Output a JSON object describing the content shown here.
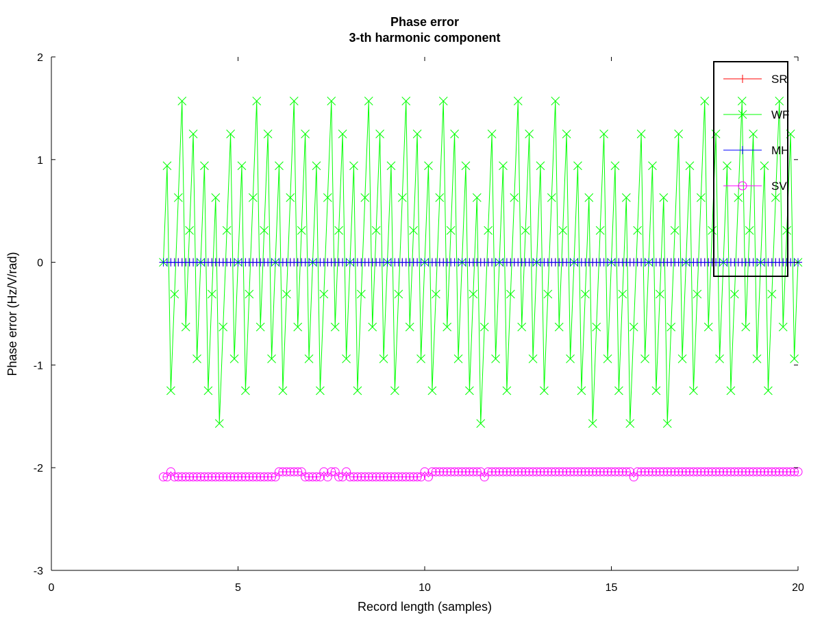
{
  "chart_data": {
    "type": "line",
    "title": "Phase error",
    "subtitle": "3-th harmonic component",
    "xlabel": "Record length (samples)",
    "ylabel": "Phase error (Hz/V/rad)",
    "xlim": [
      0,
      20
    ],
    "ylim": [
      -3,
      2
    ],
    "xticks": [
      0,
      5,
      10,
      15,
      20
    ],
    "yticks": [
      -3,
      -2,
      -1,
      0,
      1,
      2
    ],
    "grid": false,
    "legend_position": "top-right",
    "x": [
      3,
      3.1,
      3.2,
      3.3,
      3.4,
      3.5,
      3.6,
      3.7,
      3.8,
      3.9,
      4,
      4.1,
      4.2,
      4.3,
      4.4,
      4.5,
      4.6,
      4.7,
      4.8,
      4.9,
      5,
      5.1,
      5.2,
      5.3,
      5.4,
      5.5,
      5.6,
      5.7,
      5.8,
      5.9,
      6,
      6.1,
      6.2,
      6.3,
      6.4,
      6.5,
      6.6,
      6.7,
      6.8,
      6.9,
      7,
      7.1,
      7.2,
      7.3,
      7.4,
      7.5,
      7.6,
      7.7,
      7.8,
      7.9,
      8,
      8.1,
      8.2,
      8.3,
      8.4,
      8.5,
      8.6,
      8.7,
      8.8,
      8.9,
      9,
      9.1,
      9.2,
      9.3,
      9.4,
      9.5,
      9.6,
      9.7,
      9.8,
      9.9,
      10,
      10.1,
      10.2,
      10.3,
      10.4,
      10.5,
      10.6,
      10.7,
      10.8,
      10.9,
      11,
      11.1,
      11.2,
      11.3,
      11.4,
      11.5,
      11.6,
      11.7,
      11.8,
      11.9,
      12,
      12.1,
      12.2,
      12.3,
      12.4,
      12.5,
      12.6,
      12.7,
      12.8,
      12.9,
      13,
      13.1,
      13.2,
      13.3,
      13.4,
      13.5,
      13.6,
      13.7,
      13.8,
      13.9,
      14,
      14.1,
      14.2,
      14.3,
      14.4,
      14.5,
      14.6,
      14.7,
      14.8,
      14.9,
      15,
      15.1,
      15.2,
      15.3,
      15.4,
      15.5,
      15.6,
      15.7,
      15.8,
      15.9,
      16,
      16.1,
      16.2,
      16.3,
      16.4,
      16.5,
      16.6,
      16.7,
      16.8,
      16.9,
      17,
      17.1,
      17.2,
      17.3,
      17.4,
      17.5,
      17.6,
      17.7,
      17.8,
      17.9,
      18,
      18.1,
      18.2,
      18.3,
      18.4,
      18.5,
      18.6,
      18.7,
      18.8,
      18.9,
      19,
      19.1,
      19.2,
      19.3,
      19.4,
      19.5,
      19.6,
      19.7,
      19.8,
      19.9,
      20
    ],
    "series": [
      {
        "name": "SR",
        "color": "#ff0000",
        "marker": "plus",
        "values": [
          0,
          0,
          0,
          0,
          0,
          0,
          0,
          0,
          0,
          0,
          0,
          0,
          0,
          0,
          0,
          0,
          0,
          0,
          0,
          0,
          0,
          0,
          0,
          0,
          0,
          0,
          0,
          0,
          0,
          0,
          0,
          0,
          0,
          0,
          0,
          0,
          0,
          0,
          0,
          0,
          0,
          0,
          0,
          0,
          0,
          0,
          0,
          0,
          0,
          0,
          0,
          0,
          0,
          0,
          0,
          0,
          0,
          0,
          0,
          0,
          0,
          0,
          0,
          0,
          0,
          0,
          0,
          0,
          0,
          0,
          0,
          0,
          0,
          0,
          0,
          0,
          0,
          0,
          0,
          0,
          0,
          0,
          0,
          0,
          0,
          0,
          0,
          0,
          0,
          0,
          0,
          0,
          0,
          0,
          0,
          0,
          0,
          0,
          0,
          0,
          0,
          0,
          0,
          0,
          0,
          0,
          0,
          0,
          0,
          0,
          0,
          0,
          0,
          0,
          0,
          0,
          0,
          0,
          0,
          0,
          0,
          0,
          0,
          0,
          0,
          0,
          0,
          0,
          0,
          0,
          0,
          0,
          0,
          0,
          0,
          0,
          0,
          0,
          0,
          0,
          0,
          0,
          0,
          0,
          0,
          0,
          0,
          0,
          0,
          0,
          0,
          0,
          0,
          0,
          0,
          0,
          0,
          0,
          0,
          0,
          0,
          0,
          0,
          0,
          0,
          0,
          0,
          0,
          0,
          0,
          0
        ]
      },
      {
        "name": "WF",
        "color": "#00ff00",
        "marker": "x",
        "values": [
          0,
          0.94,
          -1.25,
          -0.31,
          0.63,
          1.57,
          -0.63,
          0.31,
          1.25,
          -0.94,
          0,
          0.94,
          -1.25,
          -0.31,
          0.63,
          -1.57,
          -0.63,
          0.31,
          1.25,
          -0.94,
          0,
          0.94,
          -1.25,
          -0.31,
          0.63,
          1.57,
          -0.63,
          0.31,
          1.25,
          -0.94,
          0,
          0.94,
          -1.25,
          -0.31,
          0.63,
          1.57,
          -0.63,
          0.31,
          1.25,
          -0.94,
          0,
          0.94,
          -1.25,
          -0.31,
          0.63,
          1.57,
          -0.63,
          0.31,
          1.25,
          -0.94,
          0,
          0.94,
          -1.25,
          -0.31,
          0.63,
          1.57,
          -0.63,
          0.31,
          1.25,
          -0.94,
          0,
          0.94,
          -1.25,
          -0.31,
          0.63,
          1.57,
          -0.63,
          0.31,
          1.25,
          -0.94,
          0,
          0.94,
          -1.25,
          -0.31,
          0.63,
          1.57,
          -0.63,
          0.31,
          1.25,
          -0.94,
          0,
          0.94,
          -1.25,
          -0.31,
          0.63,
          -1.57,
          -0.63,
          0.31,
          1.25,
          -0.94,
          0,
          0.94,
          -1.25,
          -0.31,
          0.63,
          1.57,
          -0.63,
          0.31,
          1.25,
          -0.94,
          0,
          0.94,
          -1.25,
          -0.31,
          0.63,
          1.57,
          -0.63,
          0.31,
          1.25,
          -0.94,
          0,
          0.94,
          -1.25,
          -0.31,
          0.63,
          -1.57,
          -0.63,
          0.31,
          1.25,
          -0.94,
          0,
          0.94,
          -1.25,
          -0.31,
          0.63,
          -1.57,
          -0.63,
          0.31,
          1.25,
          -0.94,
          0,
          0.94,
          -1.25,
          -0.31,
          0.63,
          -1.57,
          -0.63,
          0.31,
          1.25,
          -0.94,
          0,
          0.94,
          -1.25,
          -0.31,
          0.63,
          1.57,
          -0.63,
          0.31,
          1.25,
          -0.94,
          0,
          0.94,
          -1.25,
          -0.31,
          0.63,
          1.57,
          -0.63,
          0.31,
          1.25,
          -0.94,
          0,
          0.94,
          -1.25,
          -0.31,
          0.63,
          1.57,
          -0.63,
          0.31,
          1.25,
          -0.94,
          0
        ]
      },
      {
        "name": "MH",
        "color": "#0000ff",
        "marker": "plus",
        "values": [
          0,
          0,
          0,
          0,
          0,
          0,
          0,
          0,
          0,
          0,
          0,
          0,
          0,
          0,
          0,
          0,
          0,
          0,
          0,
          0,
          0,
          0,
          0,
          0,
          0,
          0,
          0,
          0,
          0,
          0,
          0,
          0,
          0,
          0,
          0,
          0,
          0,
          0,
          0,
          0,
          0,
          0,
          0,
          0,
          0,
          0,
          0,
          0,
          0,
          0,
          0,
          0,
          0,
          0,
          0,
          0,
          0,
          0,
          0,
          0,
          0,
          0,
          0,
          0,
          0,
          0,
          0,
          0,
          0,
          0,
          0,
          0,
          0,
          0,
          0,
          0,
          0,
          0,
          0,
          0,
          0,
          0,
          0,
          0,
          0,
          0,
          0,
          0,
          0,
          0,
          0,
          0,
          0,
          0,
          0,
          0,
          0,
          0,
          0,
          0,
          0,
          0,
          0,
          0,
          0,
          0,
          0,
          0,
          0,
          0,
          0,
          0,
          0,
          0,
          0,
          0,
          0,
          0,
          0,
          0,
          0,
          0,
          0,
          0,
          0,
          0,
          0,
          0,
          0,
          0,
          0,
          0,
          0,
          0,
          0,
          0,
          0,
          0,
          0,
          0,
          0,
          0,
          0,
          0,
          0,
          0,
          0,
          0,
          0,
          0,
          0,
          0,
          0,
          0,
          0,
          0,
          0,
          0,
          0,
          0,
          0,
          0,
          0,
          0,
          0,
          0,
          0,
          0,
          0,
          0,
          0
        ]
      },
      {
        "name": "SV",
        "color": "#ff00ff",
        "marker": "circle",
        "values": [
          -2.09,
          -2.09,
          -2.04,
          -2.09,
          -2.09,
          -2.09,
          -2.09,
          -2.09,
          -2.09,
          -2.09,
          -2.09,
          -2.09,
          -2.09,
          -2.09,
          -2.09,
          -2.09,
          -2.09,
          -2.09,
          -2.09,
          -2.09,
          -2.09,
          -2.09,
          -2.09,
          -2.09,
          -2.09,
          -2.09,
          -2.09,
          -2.09,
          -2.09,
          -2.09,
          -2.09,
          -2.04,
          -2.04,
          -2.04,
          -2.04,
          -2.04,
          -2.04,
          -2.04,
          -2.09,
          -2.09,
          -2.09,
          -2.09,
          -2.09,
          -2.04,
          -2.09,
          -2.04,
          -2.04,
          -2.09,
          -2.09,
          -2.04,
          -2.09,
          -2.09,
          -2.09,
          -2.09,
          -2.09,
          -2.09,
          -2.09,
          -2.09,
          -2.09,
          -2.09,
          -2.09,
          -2.09,
          -2.09,
          -2.09,
          -2.09,
          -2.09,
          -2.09,
          -2.09,
          -2.09,
          -2.09,
          -2.04,
          -2.09,
          -2.04,
          -2.04,
          -2.04,
          -2.04,
          -2.04,
          -2.04,
          -2.04,
          -2.04,
          -2.04,
          -2.04,
          -2.04,
          -2.04,
          -2.04,
          -2.04,
          -2.09,
          -2.04,
          -2.04,
          -2.04,
          -2.04,
          -2.04,
          -2.04,
          -2.04,
          -2.04,
          -2.04,
          -2.04,
          -2.04,
          -2.04,
          -2.04,
          -2.04,
          -2.04,
          -2.04,
          -2.04,
          -2.04,
          -2.04,
          -2.04,
          -2.04,
          -2.04,
          -2.04,
          -2.04,
          -2.04,
          -2.04,
          -2.04,
          -2.04,
          -2.04,
          -2.04,
          -2.04,
          -2.04,
          -2.04,
          -2.04,
          -2.04,
          -2.04,
          -2.04,
          -2.04,
          -2.04,
          -2.09,
          -2.04,
          -2.04,
          -2.04,
          -2.04,
          -2.04,
          -2.04,
          -2.04,
          -2.04,
          -2.04,
          -2.04,
          -2.04,
          -2.04,
          -2.04,
          -2.04,
          -2.04,
          -2.04,
          -2.04,
          -2.04,
          -2.04,
          -2.04,
          -2.04,
          -2.04,
          -2.04,
          -2.04,
          -2.04,
          -2.04,
          -2.04,
          -2.04,
          -2.04,
          -2.04,
          -2.04,
          -2.04,
          -2.04,
          -2.04,
          -2.04,
          -2.04,
          -2.04,
          -2.04,
          -2.04,
          -2.04,
          -2.04,
          -2.04,
          -2.04,
          -2.04
        ]
      }
    ]
  }
}
